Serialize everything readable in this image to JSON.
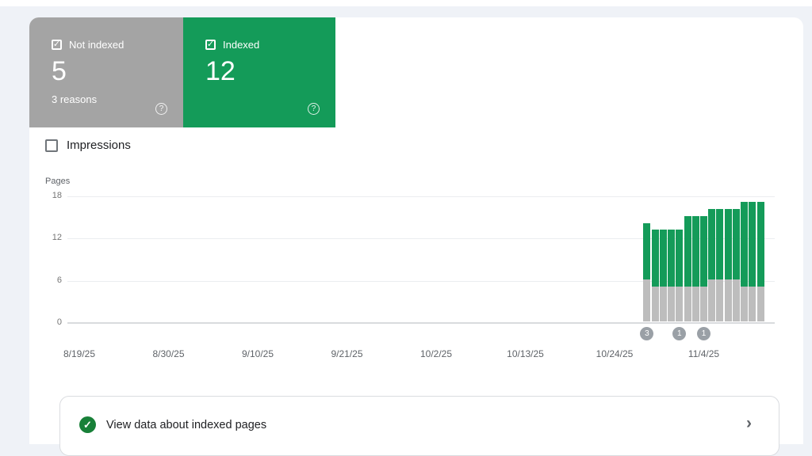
{
  "page_bg": "#eff2f7",
  "icons": {
    "check": "✓",
    "help": "?",
    "chevron": "›"
  },
  "cards": [
    {
      "label": "Not indexed",
      "value": "5",
      "sub": "3 reasons",
      "checked": true,
      "bg": "#a4a4a4"
    },
    {
      "label": "Indexed",
      "value": "12",
      "sub": "",
      "checked": true,
      "bg": "#149b59"
    }
  ],
  "impressions": {
    "label": "Impressions",
    "checked": false
  },
  "banner": {
    "text": "View data about indexed pages"
  },
  "chart_data": {
    "type": "bar",
    "stacked": true,
    "title": "",
    "xlabel": "",
    "ylabel": "Pages",
    "ylim": [
      0,
      18
    ],
    "yticks": [
      0,
      6,
      12,
      18
    ],
    "grid": true,
    "legend_position": "none",
    "xticks": [
      "8/19/25",
      "8/30/25",
      "9/10/25",
      "9/21/25",
      "10/2/25",
      "10/13/25",
      "10/24/25",
      "11/4/25"
    ],
    "series": [
      {
        "name": "Not indexed",
        "color": "#bdbdbd"
      },
      {
        "name": "Indexed",
        "color": "#149b59"
      }
    ],
    "bars": [
      {
        "date": "10/28/25",
        "not_indexed": 6,
        "indexed": 8,
        "annotations": 3
      },
      {
        "date": "10/29/25",
        "not_indexed": 5,
        "indexed": 8
      },
      {
        "date": "10/30/25",
        "not_indexed": 5,
        "indexed": 8
      },
      {
        "date": "10/31/25",
        "not_indexed": 5,
        "indexed": 8
      },
      {
        "date": "11/1/25",
        "not_indexed": 5,
        "indexed": 8,
        "annotations": 1
      },
      {
        "date": "11/2/25",
        "not_indexed": 5,
        "indexed": 10
      },
      {
        "date": "11/3/25",
        "not_indexed": 5,
        "indexed": 10
      },
      {
        "date": "11/4/25",
        "not_indexed": 5,
        "indexed": 10,
        "annotations": 1
      },
      {
        "date": "11/5/25",
        "not_indexed": 6,
        "indexed": 10
      },
      {
        "date": "11/6/25",
        "not_indexed": 6,
        "indexed": 10
      },
      {
        "date": "11/7/25",
        "not_indexed": 6,
        "indexed": 10
      },
      {
        "date": "11/8/25",
        "not_indexed": 6,
        "indexed": 10
      },
      {
        "date": "11/9/25",
        "not_indexed": 5,
        "indexed": 12
      },
      {
        "date": "11/10/25",
        "not_indexed": 5,
        "indexed": 12
      },
      {
        "date": "11/11/25",
        "not_indexed": 5,
        "indexed": 12
      }
    ]
  }
}
